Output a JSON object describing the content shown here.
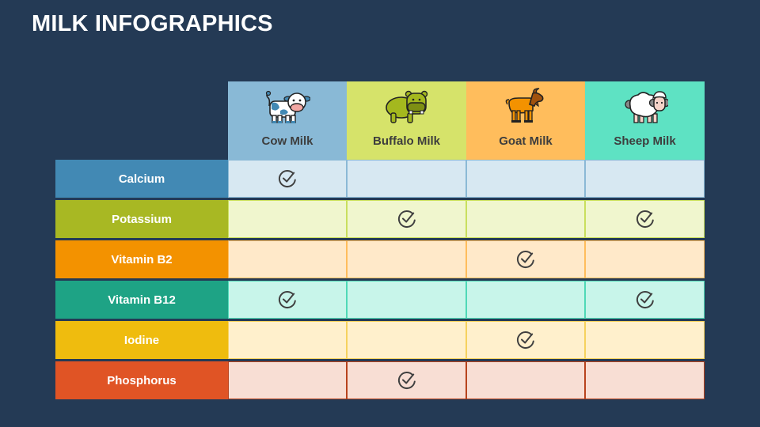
{
  "title": "MILK INFOGRAPHICS",
  "columns": [
    {
      "label": "Cow Milk",
      "icon": "cow-icon",
      "color": "#89b9d6"
    },
    {
      "label": "Buffalo Milk",
      "icon": "buffalo-icon",
      "color": "#d6e36a"
    },
    {
      "label": "Goat Milk",
      "icon": "goat-icon",
      "color": "#ffbd5c"
    },
    {
      "label": "Sheep Milk",
      "icon": "sheep-icon",
      "color": "#5ee2c3"
    }
  ],
  "rows": [
    {
      "label": "Calcium",
      "color": "#4289b4",
      "cell_bg": "#d7e8f2",
      "border": "#8bb9d6",
      "checks": [
        true,
        false,
        false,
        false
      ]
    },
    {
      "label": "Potassium",
      "color": "#a8b823",
      "cell_bg": "#f0f6ce",
      "border": "#c9df5e",
      "checks": [
        false,
        true,
        false,
        true
      ]
    },
    {
      "label": "Vitamin B2",
      "color": "#f39200",
      "cell_bg": "#ffe9c9",
      "border": "#ffbd5c",
      "checks": [
        false,
        false,
        true,
        false
      ]
    },
    {
      "label": "Vitamin B12",
      "color": "#1ea385",
      "cell_bg": "#c8f5ea",
      "border": "#4fd9b7",
      "checks": [
        true,
        false,
        false,
        true
      ]
    },
    {
      "label": "Iodine",
      "color": "#efbc0e",
      "cell_bg": "#fff0cc",
      "border": "#f6d25e",
      "checks": [
        false,
        false,
        true,
        false
      ]
    },
    {
      "label": "Phosphorus",
      "color": "#e05425",
      "cell_bg": "#f8ded4",
      "border": "#b8431d",
      "checks": [
        false,
        true,
        false,
        false
      ]
    }
  ],
  "check_icon": "check-circle-icon",
  "check_color": "#404040"
}
